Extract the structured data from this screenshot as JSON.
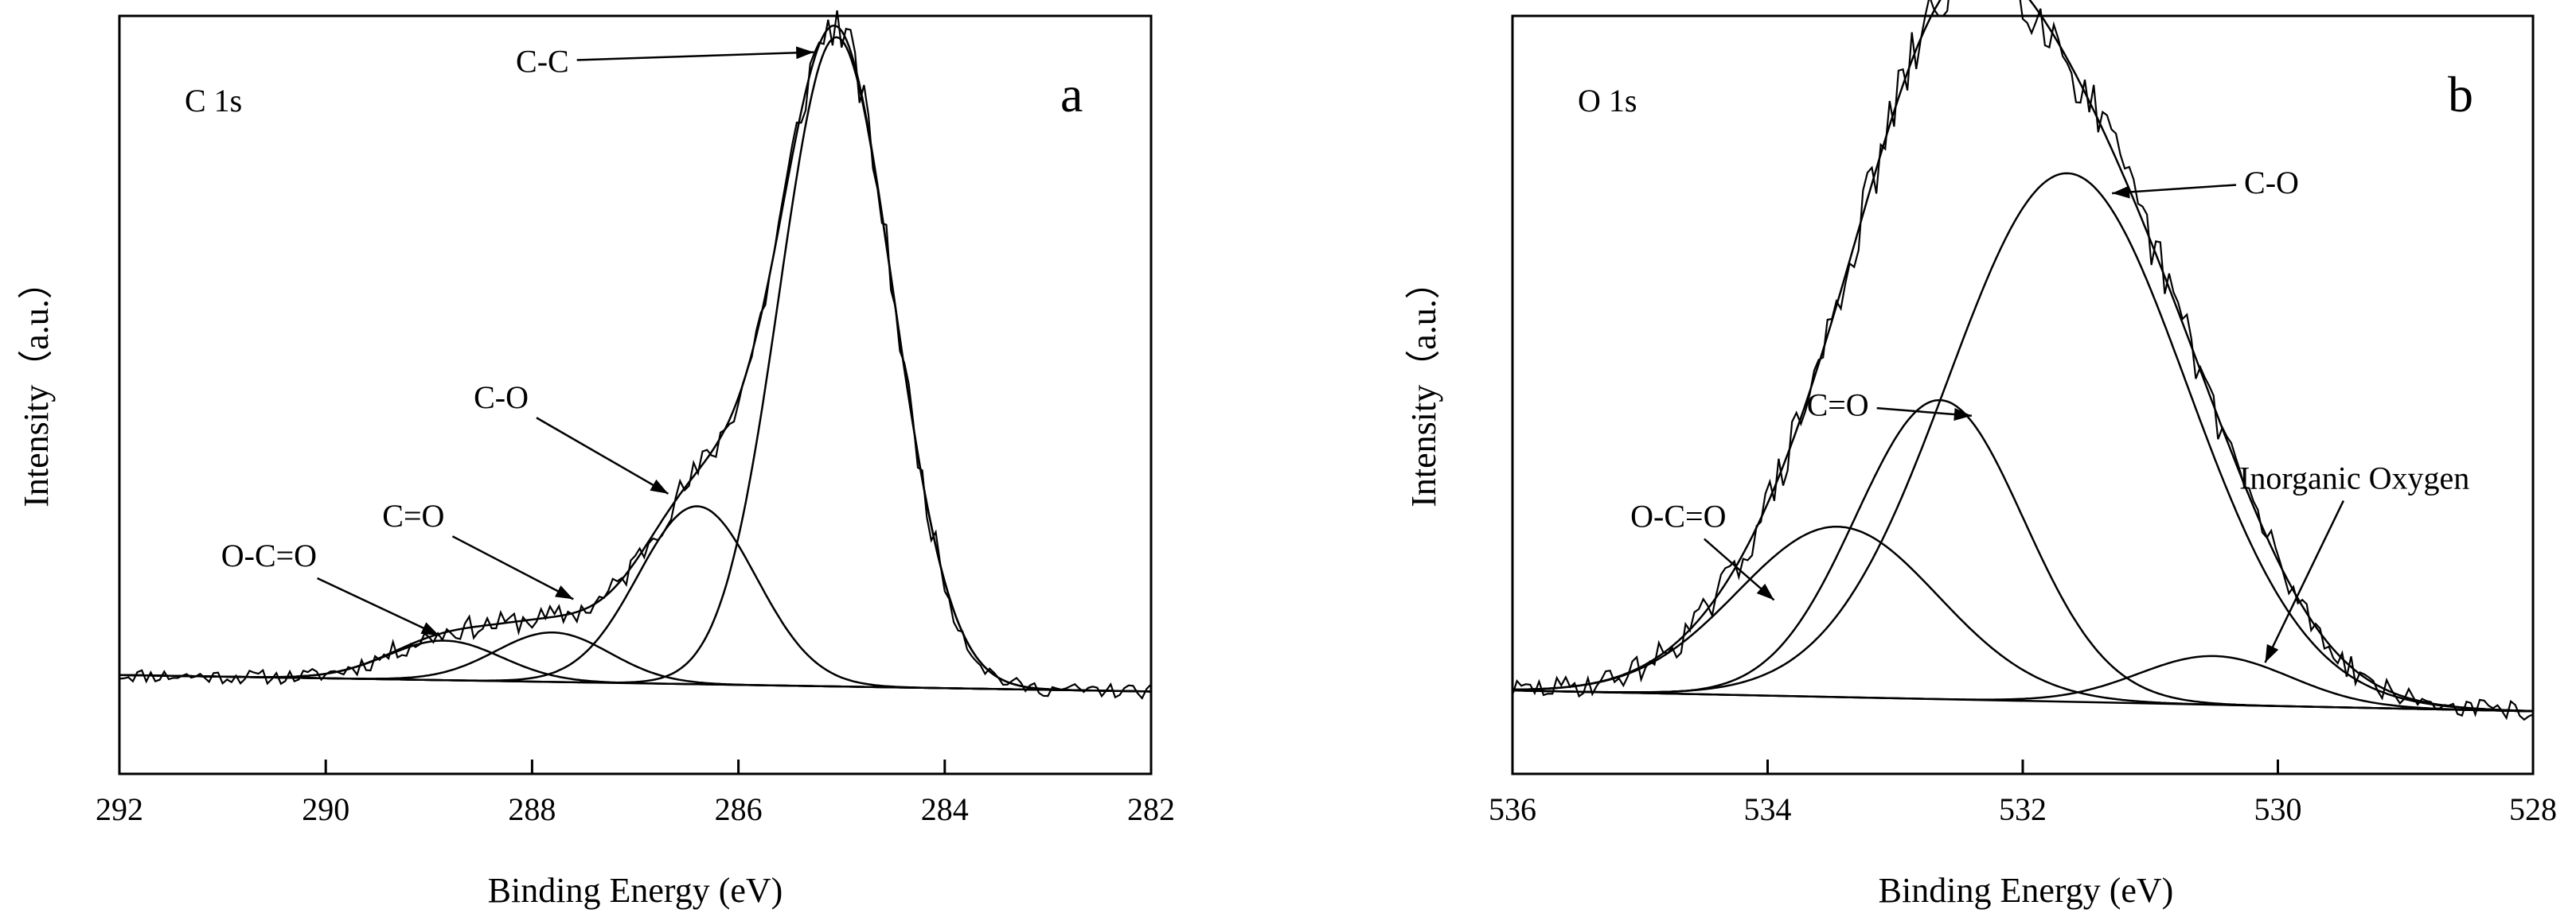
{
  "chart_data": [
    {
      "type": "line",
      "panel_label": "a",
      "spectrum_label": "C 1s",
      "title": "",
      "xlabel": "Binding Energy (eV)",
      "ylabel": "Intensity（a.u.）",
      "xlim": [
        292,
        282
      ],
      "x_reversed": true,
      "ylim": [
        -0.15,
        1.0
      ],
      "y_ticks_shown": false,
      "xticks": [
        292,
        290,
        288,
        286,
        284,
        282
      ],
      "xtick_labels": [
        "292",
        "290",
        "288",
        "286",
        "284",
        "282"
      ],
      "background": {
        "x_start": 292,
        "x_end": 282,
        "y_start": 0.0,
        "y_end": -0.025
      },
      "series": [
        {
          "name": "O-C=O",
          "kind": "component",
          "center": 288.85,
          "height": 0.06,
          "fwhm": 1.3
        },
        {
          "name": "C=O",
          "kind": "component",
          "center": 287.8,
          "height": 0.075,
          "fwhm": 1.3
        },
        {
          "name": "C-O",
          "kind": "component",
          "center": 286.4,
          "height": 0.27,
          "fwhm": 1.35
        },
        {
          "name": "C-C",
          "kind": "component",
          "center": 285.05,
          "height": 0.985,
          "fwhm": 1.3
        },
        {
          "name": "fitted envelope",
          "kind": "envelope"
        },
        {
          "name": "measured spectrum",
          "kind": "raw",
          "noise": 0.011,
          "seed": 11
        }
      ],
      "annotations": [
        {
          "text": "C-C",
          "x": 287.9,
          "y": 0.915,
          "arrow_to_x": 285.27,
          "arrow_to_y": 0.945
        },
        {
          "text": "C-O",
          "x": 288.3,
          "y": 0.405,
          "arrow_to_x": 286.68,
          "arrow_to_y": 0.275
        },
        {
          "text": "C=O",
          "x": 289.15,
          "y": 0.225,
          "arrow_to_x": 287.6,
          "arrow_to_y": 0.115
        },
        {
          "text": "O-C=O",
          "x": 290.55,
          "y": 0.165,
          "arrow_to_x": 288.9,
          "arrow_to_y": 0.06
        }
      ]
    },
    {
      "type": "line",
      "panel_label": "b",
      "spectrum_label": "O 1s",
      "title": "",
      "xlabel": "Binding Energy (eV)",
      "ylabel": "Intensity（a.u.）",
      "xlim": [
        536,
        528
      ],
      "x_reversed": true,
      "ylim": [
        -0.12,
        0.97
      ],
      "y_ticks_shown": false,
      "xticks": [
        536,
        534,
        532,
        530,
        528
      ],
      "xtick_labels": [
        "536",
        "534",
        "532",
        "530",
        "528"
      ],
      "background": {
        "x_start": 536,
        "x_end": 528,
        "y_start": 0.0,
        "y_end": -0.03
      },
      "series": [
        {
          "name": "O-C=O",
          "kind": "component",
          "center": 533.45,
          "height": 0.245,
          "fwhm": 1.85
        },
        {
          "name": "C=O",
          "kind": "component",
          "center": 532.65,
          "height": 0.43,
          "fwhm": 1.55
        },
        {
          "name": "C-O",
          "kind": "component",
          "center": 531.65,
          "height": 0.76,
          "fwhm": 2.2
        },
        {
          "name": "Inorganic Oxygen",
          "kind": "component",
          "center": 530.5,
          "height": 0.07,
          "fwhm": 1.4
        },
        {
          "name": "fitted envelope",
          "kind": "envelope"
        },
        {
          "name": "measured spectrum",
          "kind": "raw",
          "noise": 0.014,
          "seed": 29
        }
      ],
      "annotations": [
        {
          "text": "C-O",
          "x": 530.05,
          "y": 0.715,
          "arrow_to_x": 531.3,
          "arrow_to_y": 0.715
        },
        {
          "text": "C=O",
          "x": 533.45,
          "y": 0.395,
          "arrow_to_x": 532.4,
          "arrow_to_y": 0.395
        },
        {
          "text": "O-C=O",
          "x": 534.7,
          "y": 0.235,
          "arrow_to_x": 533.95,
          "arrow_to_y": 0.13
        },
        {
          "text": "Inorganic Oxygen",
          "x": 529.4,
          "y": 0.29,
          "arrow_to_x": 530.1,
          "arrow_to_y": 0.04
        }
      ]
    }
  ]
}
